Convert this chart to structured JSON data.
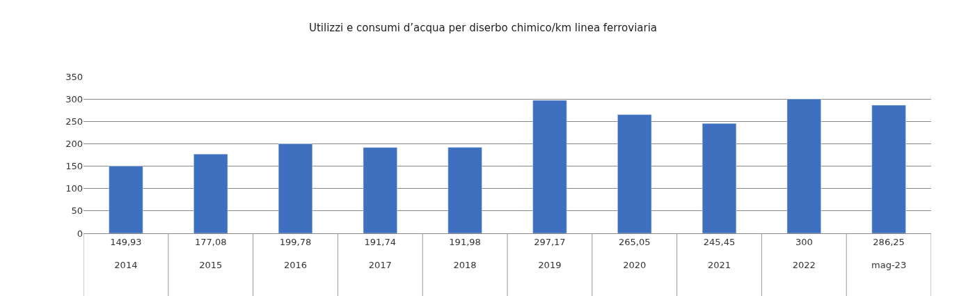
{
  "chart_data": {
    "type": "bar",
    "title": "Utilizzi e consumi d’acqua per diserbo chimico/km linea ferroviaria",
    "categories": [
      "2014",
      "2015",
      "2016",
      "2017",
      "2018",
      "2019",
      "2020",
      "2021",
      "2022",
      "mag-23"
    ],
    "values": [
      149.93,
      177.08,
      199.78,
      191.74,
      191.98,
      297.17,
      265.05,
      245.45,
      300,
      286.25
    ],
    "value_labels": [
      "149,93",
      "177,08",
      "199,78",
      "191,74",
      "191,98",
      "297,17",
      "265,05",
      "245,45",
      "300",
      "286,25"
    ],
    "color": "#3f70bf",
    "ylim": [
      0,
      350
    ],
    "yticks": [
      0,
      50,
      100,
      150,
      200,
      250,
      300,
      350
    ],
    "grid": "y"
  }
}
